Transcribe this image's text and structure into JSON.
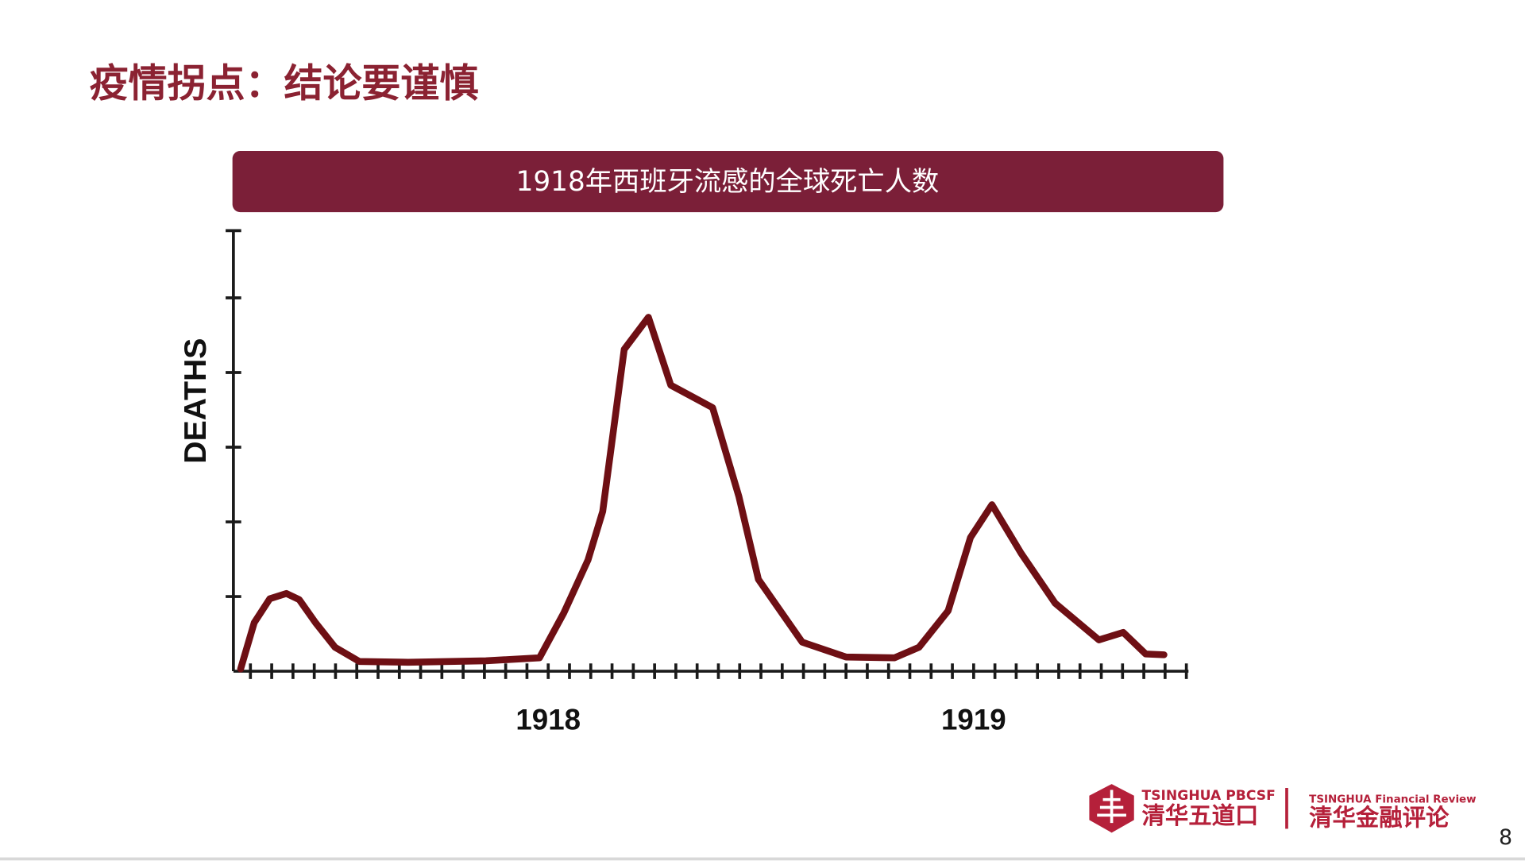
{
  "slide": {
    "title": "疫情拐点：结论要谨慎",
    "banner": "1918年西班牙流感的全球死亡人数",
    "page_number": "8"
  },
  "logos": {
    "left_en": "TSINGHUA PBCSF",
    "left_cn": "清华五道口",
    "right_en": "TSINGHUA Financial Review",
    "right_cn": "清华金融评论"
  },
  "chart_data": {
    "type": "line",
    "ylabel": "DEATHS",
    "color": "#6e0f14",
    "x": [
      -0.46,
      0.18,
      0.91,
      1.69,
      2.29,
      3.06,
      3.98,
      5.12,
      7.41,
      11.07,
      13.59,
      14.73,
      15.87,
      16.56,
      17.57,
      18.71,
      19.76,
      21.73,
      22.96,
      23.88,
      25.94,
      28.0,
      30.28,
      31.43,
      32.8,
      33.85,
      34.86,
      36.23,
      37.83,
      39.89,
      41.03,
      42.09,
      42.95
    ],
    "values": [
      0.03,
      0.65,
      0.97,
      1.04,
      0.96,
      0.65,
      0.32,
      0.13,
      0.12,
      0.14,
      0.18,
      0.78,
      1.49,
      2.14,
      4.31,
      4.74,
      3.83,
      3.53,
      2.34,
      1.23,
      0.39,
      0.19,
      0.18,
      0.32,
      0.81,
      1.79,
      2.23,
      1.58,
      0.91,
      0.42,
      0.52,
      0.23,
      0.22
    ],
    "xlim": [
      -0.8,
      44.1
    ],
    "ylim": [
      0,
      5.9
    ],
    "xticks": [
      0,
      1,
      2,
      3,
      4,
      5,
      6,
      7,
      8,
      9,
      10,
      11,
      12,
      13,
      {
        "value": 14,
        "label": "1918"
      },
      15,
      16,
      17,
      18,
      19,
      20,
      21,
      22,
      23,
      24,
      25,
      26,
      27,
      28,
      29,
      30,
      31,
      32,
      33,
      {
        "value": 34,
        "label": "1919"
      },
      35,
      36,
      37,
      38,
      39,
      40,
      41,
      42,
      43,
      44
    ],
    "yticks": [
      1,
      2,
      3,
      4,
      5
    ],
    "ytick_labels": false
  }
}
